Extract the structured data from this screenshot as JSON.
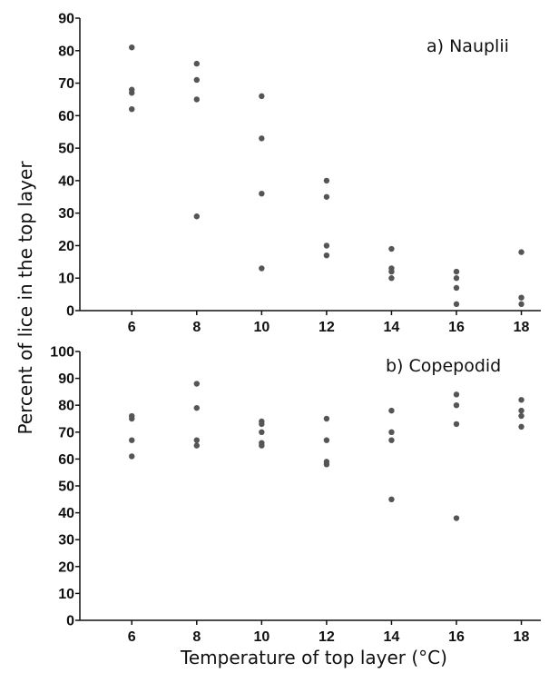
{
  "chart_data": [
    {
      "type": "scatter",
      "title": "",
      "annotation": "a) Nauplii",
      "xlabel": "",
      "ylabel": "",
      "xlim": [
        4.4,
        18.6
      ],
      "ylim": [
        0,
        90
      ],
      "xticks": [
        6,
        8,
        10,
        12,
        14,
        16,
        18
      ],
      "yticks": [
        0,
        10,
        20,
        30,
        40,
        50,
        60,
        70,
        80,
        90
      ],
      "grid": false,
      "point_color": "#555555",
      "points": [
        {
          "x": 6,
          "y": 81
        },
        {
          "x": 6,
          "y": 68
        },
        {
          "x": 6,
          "y": 67
        },
        {
          "x": 6,
          "y": 62
        },
        {
          "x": 8,
          "y": 76
        },
        {
          "x": 8,
          "y": 71
        },
        {
          "x": 8,
          "y": 65
        },
        {
          "x": 8,
          "y": 29
        },
        {
          "x": 10,
          "y": 66
        },
        {
          "x": 10,
          "y": 53
        },
        {
          "x": 10,
          "y": 36
        },
        {
          "x": 10,
          "y": 13
        },
        {
          "x": 12,
          "y": 40
        },
        {
          "x": 12,
          "y": 35
        },
        {
          "x": 12,
          "y": 20
        },
        {
          "x": 12,
          "y": 17
        },
        {
          "x": 14,
          "y": 19
        },
        {
          "x": 14,
          "y": 13
        },
        {
          "x": 14,
          "y": 12
        },
        {
          "x": 14,
          "y": 10
        },
        {
          "x": 16,
          "y": 12
        },
        {
          "x": 16,
          "y": 10
        },
        {
          "x": 16,
          "y": 7
        },
        {
          "x": 16,
          "y": 2
        },
        {
          "x": 18,
          "y": 18
        },
        {
          "x": 18,
          "y": 4
        },
        {
          "x": 18,
          "y": 2
        }
      ]
    },
    {
      "type": "scatter",
      "title": "",
      "annotation": "b) Copepodid",
      "xlabel": "Temperature of top layer (°C)",
      "ylabel": "",
      "xlim": [
        4.4,
        18.6
      ],
      "ylim": [
        0,
        100
      ],
      "xticks": [
        6,
        8,
        10,
        12,
        14,
        16,
        18
      ],
      "yticks": [
        0,
        10,
        20,
        30,
        40,
        50,
        60,
        70,
        80,
        90,
        100
      ],
      "grid": false,
      "point_color": "#555555",
      "points": [
        {
          "x": 6,
          "y": 76
        },
        {
          "x": 6,
          "y": 75
        },
        {
          "x": 6,
          "y": 67
        },
        {
          "x": 6,
          "y": 61
        },
        {
          "x": 8,
          "y": 88
        },
        {
          "x": 8,
          "y": 79
        },
        {
          "x": 8,
          "y": 67
        },
        {
          "x": 8,
          "y": 65
        },
        {
          "x": 10,
          "y": 74
        },
        {
          "x": 10,
          "y": 73
        },
        {
          "x": 10,
          "y": 70
        },
        {
          "x": 10,
          "y": 66
        },
        {
          "x": 10,
          "y": 65
        },
        {
          "x": 12,
          "y": 75
        },
        {
          "x": 12,
          "y": 67
        },
        {
          "x": 12,
          "y": 59
        },
        {
          "x": 12,
          "y": 58
        },
        {
          "x": 14,
          "y": 78
        },
        {
          "x": 14,
          "y": 70
        },
        {
          "x": 14,
          "y": 67
        },
        {
          "x": 14,
          "y": 45
        },
        {
          "x": 16,
          "y": 84
        },
        {
          "x": 16,
          "y": 80
        },
        {
          "x": 16,
          "y": 73
        },
        {
          "x": 16,
          "y": 38
        },
        {
          "x": 18,
          "y": 82
        },
        {
          "x": 18,
          "y": 78
        },
        {
          "x": 18,
          "y": 76
        },
        {
          "x": 18,
          "y": 72
        }
      ]
    }
  ],
  "shared_ylabel": "Percent of lice in the top layer"
}
